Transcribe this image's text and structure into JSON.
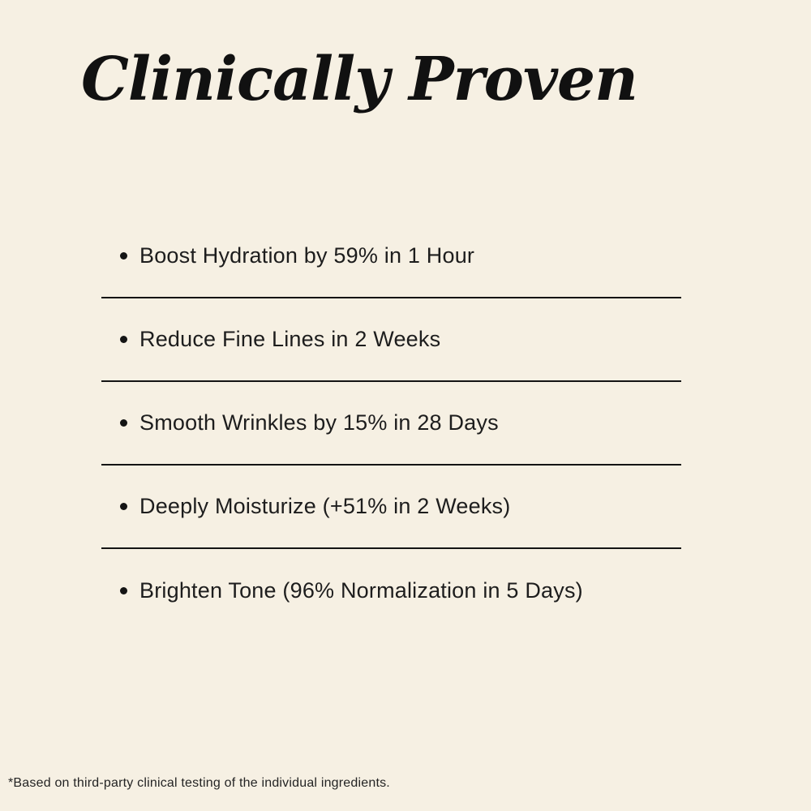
{
  "page": {
    "background_color": "#f6f0e3",
    "ink_color": "#141414",
    "divider_color": "#141414"
  },
  "title": "Clinically Proven",
  "benefits": [
    "Boost Hydration by 59% in 1 Hour",
    "Reduce Fine Lines in 2 Weeks",
    "Smooth Wrinkles by 15% in 28 Days",
    "Deeply Moisturize (+51% in 2 Weeks)",
    "Brighten Tone (96% Normalization in 5 Days)"
  ],
  "footnote": "*Based on third-party clinical testing of the individual ingredients."
}
